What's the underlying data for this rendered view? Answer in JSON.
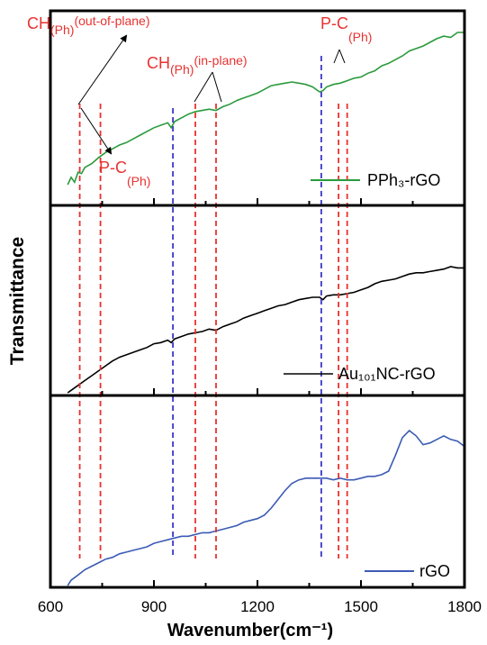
{
  "chart_data": {
    "type": "line",
    "xlabel": "Wavenumber(cm⁻¹)",
    "ylabel": "Transmittance",
    "xlim": [
      600,
      1800
    ],
    "x_ticks": [
      "600",
      "900",
      "1200",
      "1500",
      "1800"
    ],
    "panels": [
      {
        "series": {
          "name": "PPh₃-rGO",
          "color": "#2a9a3c",
          "points": [
            [
              650,
              0.04
            ],
            [
              660,
              0.1
            ],
            [
              670,
              0.06
            ],
            [
              680,
              0.14
            ],
            [
              690,
              0.13
            ],
            [
              700,
              0.18
            ],
            [
              720,
              0.21
            ],
            [
              740,
              0.26
            ],
            [
              760,
              0.3
            ],
            [
              780,
              0.33
            ],
            [
              800,
              0.36
            ],
            [
              820,
              0.38
            ],
            [
              840,
              0.41
            ],
            [
              860,
              0.44
            ],
            [
              880,
              0.47
            ],
            [
              900,
              0.5
            ],
            [
              920,
              0.52
            ],
            [
              940,
              0.54
            ],
            [
              950,
              0.5
            ],
            [
              960,
              0.55
            ],
            [
              980,
              0.58
            ],
            [
              1000,
              0.61
            ],
            [
              1020,
              0.63
            ],
            [
              1040,
              0.64
            ],
            [
              1060,
              0.65
            ],
            [
              1080,
              0.64
            ],
            [
              1100,
              0.67
            ],
            [
              1120,
              0.69
            ],
            [
              1140,
              0.72
            ],
            [
              1160,
              0.74
            ],
            [
              1180,
              0.76
            ],
            [
              1200,
              0.78
            ],
            [
              1220,
              0.81
            ],
            [
              1240,
              0.84
            ],
            [
              1260,
              0.85
            ],
            [
              1280,
              0.86
            ],
            [
              1300,
              0.87
            ],
            [
              1320,
              0.86
            ],
            [
              1340,
              0.85
            ],
            [
              1360,
              0.83
            ],
            [
              1380,
              0.79
            ],
            [
              1390,
              0.8
            ],
            [
              1400,
              0.83
            ],
            [
              1420,
              0.85
            ],
            [
              1440,
              0.86
            ],
            [
              1460,
              0.88
            ],
            [
              1480,
              0.9
            ],
            [
              1500,
              0.91
            ],
            [
              1520,
              0.94
            ],
            [
              1540,
              0.96
            ],
            [
              1560,
              1.0
            ],
            [
              1580,
              1.02
            ],
            [
              1600,
              1.05
            ],
            [
              1620,
              1.08
            ],
            [
              1640,
              1.12
            ],
            [
              1660,
              1.14
            ],
            [
              1680,
              1.16
            ],
            [
              1700,
              1.19
            ],
            [
              1720,
              1.22
            ],
            [
              1740,
              1.24
            ],
            [
              1760,
              1.23
            ],
            [
              1780,
              1.27
            ],
            [
              1800,
              1.27
            ]
          ]
        },
        "vlines": [
          {
            "x": 685,
            "color": "#e8322f"
          },
          {
            "x": 745,
            "color": "#e8322f"
          },
          {
            "x": 955,
            "color": "#3b39c8"
          },
          {
            "x": 1020,
            "color": "#e8322f"
          },
          {
            "x": 1080,
            "color": "#e8322f"
          },
          {
            "x": 1385,
            "color": "#3b39c8"
          },
          {
            "x": 1435,
            "color": "#e8322f"
          },
          {
            "x": 1460,
            "color": "#e8322f"
          }
        ],
        "annotations": [
          {
            "main": "CH",
            "sub": "(Ph)",
            "sup": "(out-of-plane)"
          },
          {
            "main": "CH",
            "sub": "(Ph)",
            "sup": "(in-plane)"
          },
          {
            "main": "P-C",
            "sub": "",
            "sup": "(Ph)"
          },
          {
            "main": "P-C",
            "sub": "(Ph)",
            "sup": ""
          }
        ]
      },
      {
        "series": {
          "name": "Au₁₀₁NC-rGO",
          "color": "#000000",
          "points": [
            [
              650,
              0.0
            ],
            [
              660,
              0.02
            ],
            [
              680,
              0.06
            ],
            [
              700,
              0.1
            ],
            [
              720,
              0.14
            ],
            [
              740,
              0.18
            ],
            [
              760,
              0.22
            ],
            [
              780,
              0.26
            ],
            [
              800,
              0.29
            ],
            [
              820,
              0.31
            ],
            [
              840,
              0.33
            ],
            [
              860,
              0.35
            ],
            [
              880,
              0.37
            ],
            [
              900,
              0.4
            ],
            [
              920,
              0.41
            ],
            [
              940,
              0.43
            ],
            [
              950,
              0.41
            ],
            [
              960,
              0.44
            ],
            [
              980,
              0.46
            ],
            [
              1000,
              0.48
            ],
            [
              1020,
              0.49
            ],
            [
              1040,
              0.5
            ],
            [
              1060,
              0.52
            ],
            [
              1080,
              0.51
            ],
            [
              1100,
              0.54
            ],
            [
              1120,
              0.56
            ],
            [
              1140,
              0.58
            ],
            [
              1160,
              0.61
            ],
            [
              1180,
              0.63
            ],
            [
              1200,
              0.65
            ],
            [
              1220,
              0.67
            ],
            [
              1240,
              0.69
            ],
            [
              1260,
              0.71
            ],
            [
              1280,
              0.72
            ],
            [
              1300,
              0.74
            ],
            [
              1320,
              0.76
            ],
            [
              1340,
              0.77
            ],
            [
              1360,
              0.78
            ],
            [
              1380,
              0.78
            ],
            [
              1390,
              0.76
            ],
            [
              1400,
              0.79
            ],
            [
              1420,
              0.8
            ],
            [
              1440,
              0.8
            ],
            [
              1460,
              0.81
            ],
            [
              1480,
              0.82
            ],
            [
              1500,
              0.84
            ],
            [
              1520,
              0.86
            ],
            [
              1540,
              0.89
            ],
            [
              1560,
              0.91
            ],
            [
              1580,
              0.92
            ],
            [
              1600,
              0.93
            ],
            [
              1620,
              0.95
            ],
            [
              1640,
              0.97
            ],
            [
              1660,
              0.98
            ],
            [
              1680,
              0.98
            ],
            [
              1700,
              0.99
            ],
            [
              1720,
              1.0
            ],
            [
              1740,
              1.01
            ],
            [
              1760,
              1.03
            ],
            [
              1780,
              1.02
            ],
            [
              1800,
              1.02
            ]
          ]
        }
      },
      {
        "series": {
          "name": "rGO",
          "color": "#3b5bb5",
          "points": [
            [
              650,
              0.0
            ],
            [
              660,
              0.03
            ],
            [
              680,
              0.06
            ],
            [
              700,
              0.09
            ],
            [
              720,
              0.11
            ],
            [
              740,
              0.13
            ],
            [
              760,
              0.15
            ],
            [
              780,
              0.16
            ],
            [
              800,
              0.18
            ],
            [
              820,
              0.19
            ],
            [
              840,
              0.2
            ],
            [
              860,
              0.21
            ],
            [
              880,
              0.22
            ],
            [
              900,
              0.24
            ],
            [
              920,
              0.25
            ],
            [
              940,
              0.26
            ],
            [
              960,
              0.27
            ],
            [
              980,
              0.28
            ],
            [
              1000,
              0.28
            ],
            [
              1020,
              0.29
            ],
            [
              1040,
              0.3
            ],
            [
              1060,
              0.3
            ],
            [
              1080,
              0.31
            ],
            [
              1100,
              0.32
            ],
            [
              1120,
              0.33
            ],
            [
              1140,
              0.34
            ],
            [
              1160,
              0.36
            ],
            [
              1180,
              0.37
            ],
            [
              1200,
              0.38
            ],
            [
              1220,
              0.4
            ],
            [
              1240,
              0.44
            ],
            [
              1260,
              0.49
            ],
            [
              1280,
              0.54
            ],
            [
              1300,
              0.58
            ],
            [
              1320,
              0.6
            ],
            [
              1340,
              0.61
            ],
            [
              1360,
              0.61
            ],
            [
              1380,
              0.61
            ],
            [
              1400,
              0.61
            ],
            [
              1420,
              0.6
            ],
            [
              1440,
              0.61
            ],
            [
              1460,
              0.6
            ],
            [
              1480,
              0.6
            ],
            [
              1500,
              0.61
            ],
            [
              1520,
              0.62
            ],
            [
              1540,
              0.62
            ],
            [
              1560,
              0.63
            ],
            [
              1580,
              0.65
            ],
            [
              1600,
              0.74
            ],
            [
              1620,
              0.84
            ],
            [
              1640,
              0.88
            ],
            [
              1660,
              0.85
            ],
            [
              1680,
              0.8
            ],
            [
              1700,
              0.81
            ],
            [
              1720,
              0.83
            ],
            [
              1740,
              0.85
            ],
            [
              1760,
              0.83
            ],
            [
              1780,
              0.82
            ],
            [
              1800,
              0.79
            ]
          ]
        }
      }
    ]
  }
}
